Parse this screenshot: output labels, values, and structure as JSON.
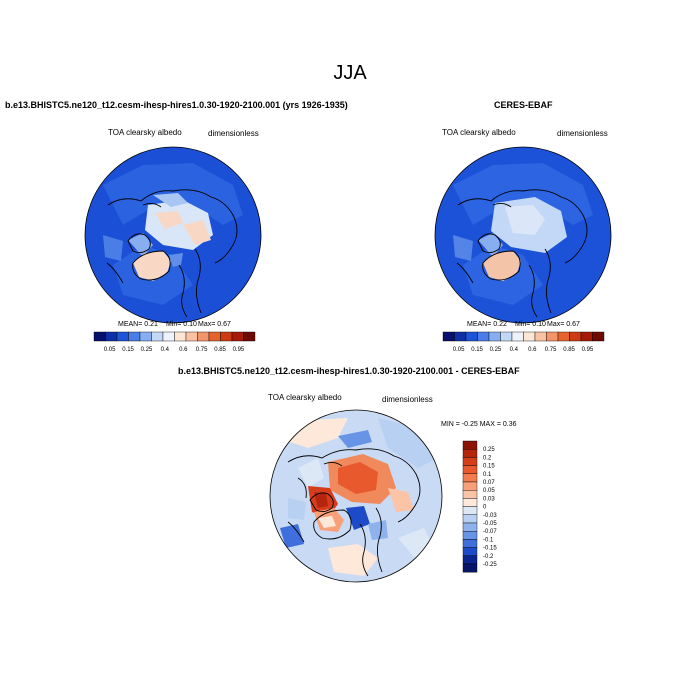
{
  "main_title": "JJA",
  "panels": [
    {
      "title": "b.e13.BHISTC5.ne120_t12.cesm-ihesp-hires1.0.30-1920-2100.001 (yrs 1926-1935)",
      "variable": "TOA clearsky albedo",
      "units": "dimensionless",
      "stats_mean": "MEAN=   0.21",
      "stats_min": "Min=   0.10",
      "stats_max": "Max=   0.67"
    },
    {
      "title": "CERES-EBAF",
      "variable": "TOA clearsky albedo",
      "units": "dimensionless",
      "stats_mean": "MEAN=   0.22",
      "stats_min": "Min=   0.10",
      "stats_max": "Max=   0.67"
    },
    {
      "title": "b.e13.BHISTC5.ne120_t12.cesm-ihesp-hires1.0.30-1920-2100.001 - CERES-EBAF",
      "variable": "TOA clearsky albedo",
      "units": "dimensionless",
      "stats_minmax": "MIN = -0.25  MAX =  0.36"
    }
  ],
  "albedo_colorbar": {
    "labels": [
      "0.05",
      "0.15",
      "0.25",
      "0.4",
      "0.6",
      "0.75",
      "0.85",
      "0.95"
    ],
    "colors": [
      "#08106e",
      "#0f2fa8",
      "#1e54d8",
      "#4a7ee6",
      "#86aef0",
      "#c2d8f6",
      "#eef3fb",
      "#fde6d6",
      "#f9c2a2",
      "#f3946a",
      "#e5642e",
      "#cd3a14",
      "#a81a08",
      "#6e0a03"
    ]
  },
  "diff_colorbar": {
    "labels": [
      "0.25",
      "0.2",
      "0.15",
      "0.1",
      "0.07",
      "0.05",
      "0.03",
      "0",
      "-0.03",
      "-0.05",
      "-0.07",
      "-0.1",
      "-0.15",
      "-0.2",
      "-0.25"
    ],
    "colors": [
      "#8b1406",
      "#b5240c",
      "#d63d1a",
      "#e8592e",
      "#f27c4f",
      "#f8a078",
      "#fcc4a6",
      "#fde8da",
      "#dde8f7",
      "#b8d0f2",
      "#8fb2ec",
      "#6894e6",
      "#3f6fdc",
      "#1d4bc8",
      "#0a2490",
      "#061566"
    ]
  }
}
